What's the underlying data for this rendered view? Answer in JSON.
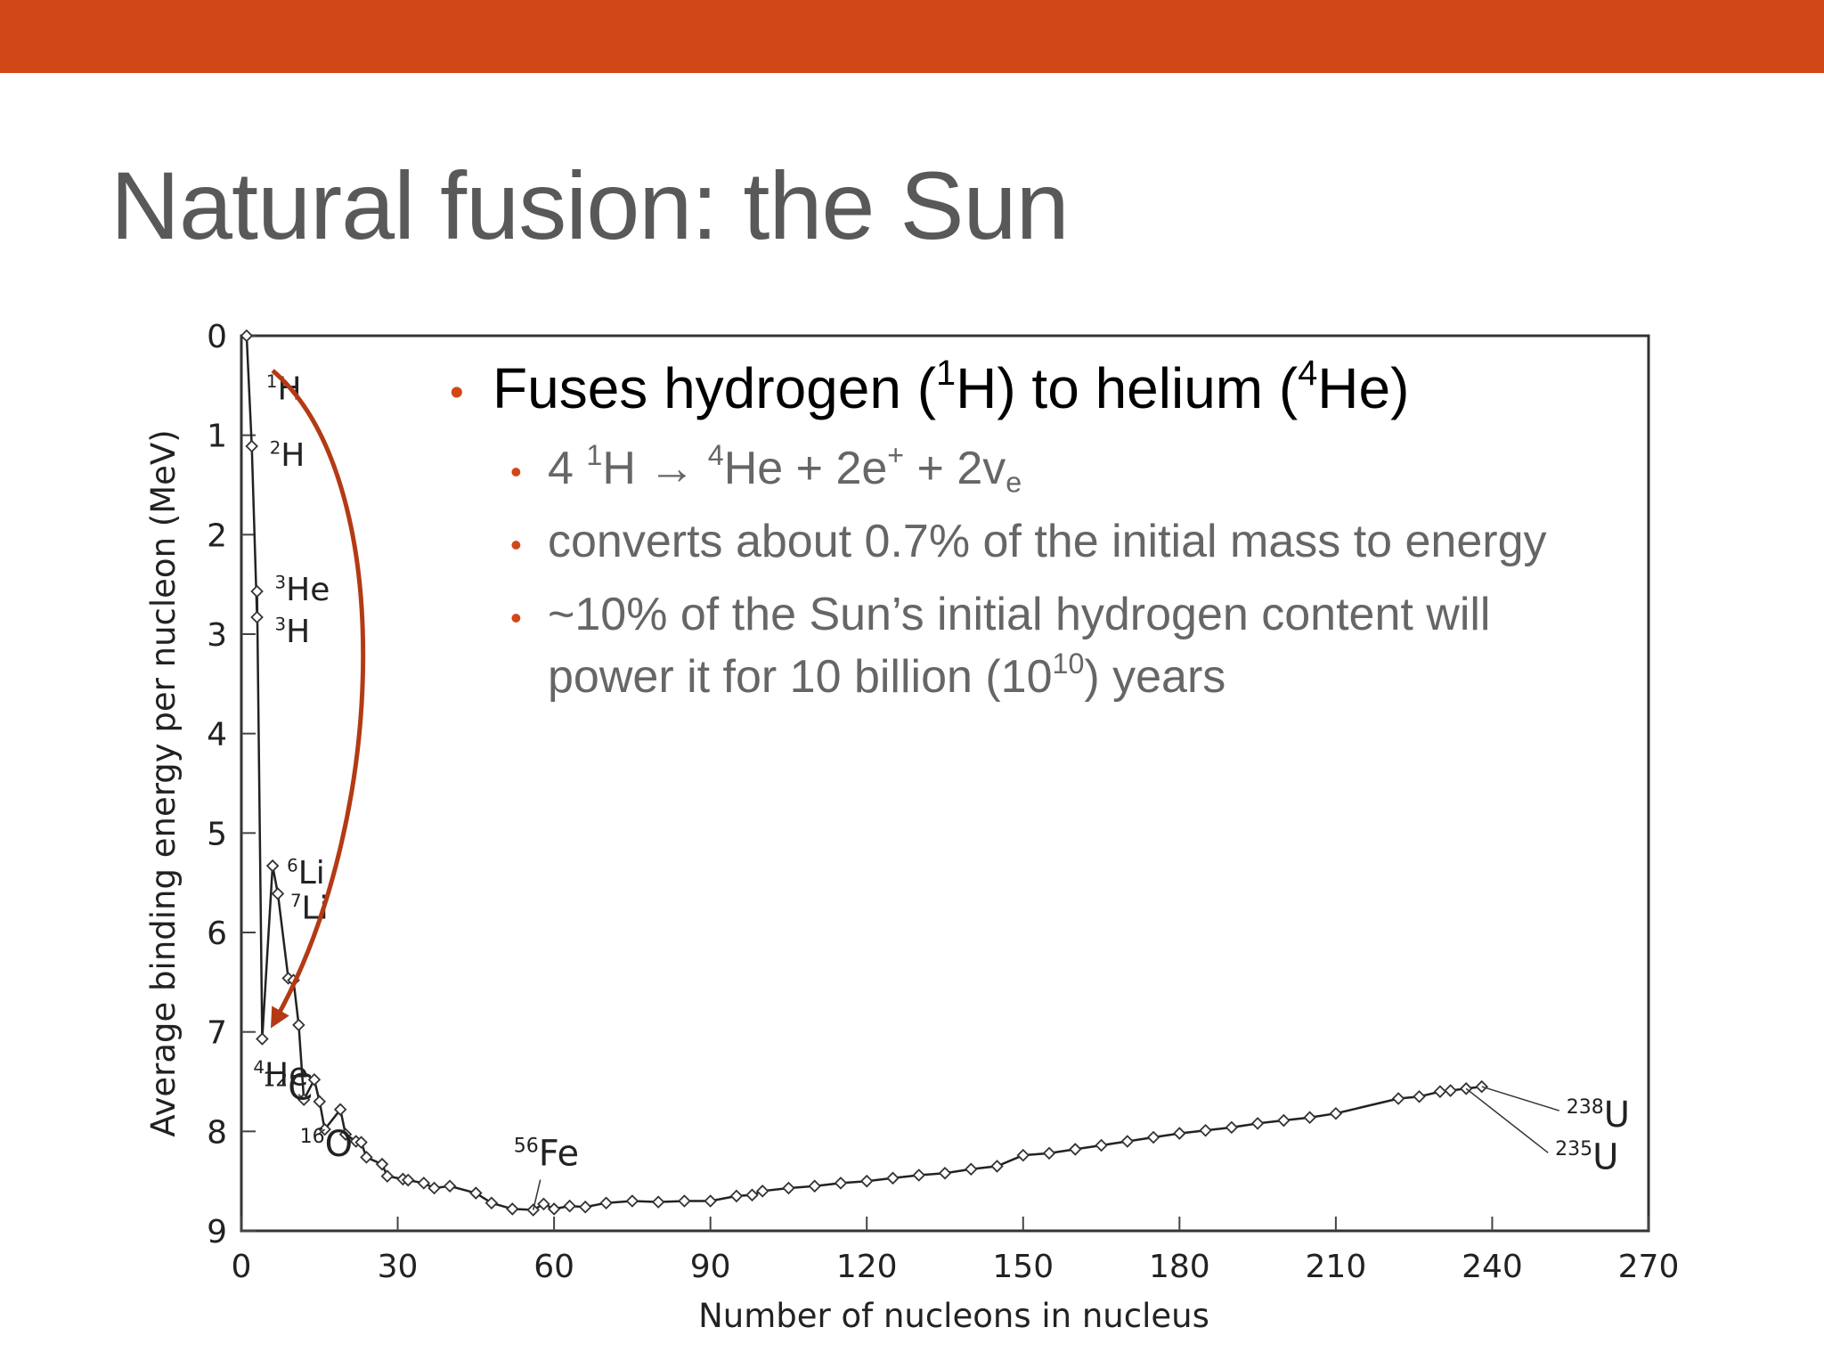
{
  "slide": {
    "title": "Natural fusion: the Sun",
    "accent": "#d24717"
  },
  "bullets": {
    "main": {
      "pre": "Fuses hydrogen (",
      "sup1": "1",
      "mid": "H) to helium (",
      "sup2": "4",
      "post": "He)"
    },
    "reaction": {
      "a": "4 ",
      "s1": "1",
      "b": "H ",
      "arrow": "→",
      "c": " ",
      "s2": "4",
      "d": "He + 2e",
      "s3": "+",
      "e": " + 2v",
      "sub": "e"
    },
    "mass": "converts about 0.7% of the initial mass to energy",
    "content": {
      "line1": "~10% of the Sun’s initial hydrogen content will",
      "pre": "power it for 10 billion (10",
      "sup": "10",
      "post": ") years"
    }
  },
  "chart_data": {
    "type": "line",
    "xlabel": "Number of nucleons in nucleus",
    "ylabel": "Average binding energy per nucleon (MeV)",
    "xlim": [
      0,
      270
    ],
    "ylim": [
      0,
      9
    ],
    "y_inverted": true,
    "x_ticks": [
      0,
      30,
      60,
      90,
      120,
      150,
      180,
      210,
      240,
      270
    ],
    "y_ticks": [
      0,
      1,
      2,
      3,
      4,
      5,
      6,
      7,
      8,
      9
    ],
    "series": [
      {
        "points": [
          [
            1,
            0
          ],
          [
            2,
            1.11
          ],
          [
            3,
            2.83
          ],
          [
            3,
            2.57
          ],
          [
            4,
            7.07
          ],
          [
            6,
            5.33
          ],
          [
            7,
            5.61
          ],
          [
            9,
            6.46
          ],
          [
            10,
            6.48
          ],
          [
            11,
            6.93
          ],
          [
            12,
            7.68
          ],
          [
            14,
            7.48
          ],
          [
            15,
            7.7
          ],
          [
            16,
            7.98
          ],
          [
            19,
            7.78
          ],
          [
            20,
            8.03
          ],
          [
            22,
            8.1
          ],
          [
            23,
            8.11
          ],
          [
            24,
            8.26
          ],
          [
            27,
            8.33
          ],
          [
            28,
            8.45
          ],
          [
            31,
            8.48
          ],
          [
            32,
            8.49
          ],
          [
            35,
            8.52
          ],
          [
            37,
            8.57
          ],
          [
            40,
            8.55
          ],
          [
            45,
            8.62
          ],
          [
            48,
            8.72
          ],
          [
            52,
            8.78
          ],
          [
            56,
            8.79
          ],
          [
            58,
            8.73
          ],
          [
            60,
            8.78
          ],
          [
            63,
            8.75
          ],
          [
            66,
            8.76
          ],
          [
            70,
            8.72
          ],
          [
            75,
            8.7
          ],
          [
            80,
            8.71
          ],
          [
            85,
            8.7
          ],
          [
            90,
            8.7
          ],
          [
            95,
            8.65
          ],
          [
            98,
            8.64
          ],
          [
            100,
            8.6
          ],
          [
            105,
            8.57
          ],
          [
            110,
            8.55
          ],
          [
            115,
            8.52
          ],
          [
            120,
            8.5
          ],
          [
            125,
            8.47
          ],
          [
            130,
            8.44
          ],
          [
            135,
            8.42
          ],
          [
            140,
            8.38
          ],
          [
            145,
            8.35
          ],
          [
            150,
            8.24
          ],
          [
            155,
            8.22
          ],
          [
            160,
            8.18
          ],
          [
            165,
            8.14
          ],
          [
            170,
            8.1
          ],
          [
            175,
            8.06
          ],
          [
            180,
            8.02
          ],
          [
            185,
            7.99
          ],
          [
            190,
            7.96
          ],
          [
            195,
            7.92
          ],
          [
            200,
            7.89
          ],
          [
            205,
            7.86
          ],
          [
            210,
            7.82
          ],
          [
            222,
            7.67
          ],
          [
            226,
            7.65
          ],
          [
            230,
            7.6
          ],
          [
            232,
            7.59
          ],
          [
            235,
            7.57
          ],
          [
            238,
            7.55
          ]
        ]
      }
    ],
    "annotations": [
      {
        "text": "H",
        "sup": "1",
        "x": 1,
        "y": 0.3
      },
      {
        "text": "H",
        "sup": "2",
        "x": 2,
        "y": 1.11
      },
      {
        "text": "He",
        "sup": "3",
        "x": 3,
        "y": 2.57
      },
      {
        "text": "H",
        "sup": "3",
        "x": 3,
        "y": 2.83
      },
      {
        "text": "Li",
        "sup": "6",
        "x": 6,
        "y": 5.33
      },
      {
        "text": "Li",
        "sup": "7",
        "x": 7,
        "y": 5.61
      },
      {
        "text": "He",
        "sup": "4",
        "x": 4,
        "y": 7.07
      },
      {
        "text": "C",
        "sup": "12",
        "x": 12,
        "y": 7.68
      },
      {
        "text": "O",
        "sup": "16",
        "x": 16,
        "y": 7.98
      },
      {
        "text": "Fe",
        "sup": "56",
        "x": 56,
        "y": 8.79
      },
      {
        "text": "U",
        "sup": "238",
        "x": 238,
        "y": 7.55
      },
      {
        "text": "U",
        "sup": "235",
        "x": 235,
        "y": 7.57
      }
    ],
    "fusion_arrow": {
      "from": [
        6,
        0.35
      ],
      "to": [
        4,
        7.0
      ],
      "color": "#b33a14"
    }
  }
}
